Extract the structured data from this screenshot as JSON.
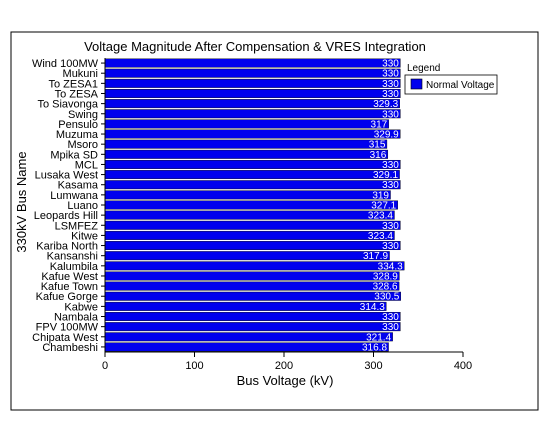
{
  "chart_data": {
    "type": "bar",
    "orientation": "horizontal",
    "title": "Voltage Magnitude After Compensation & VRES Integration",
    "xlabel": "Bus Voltage (kV)",
    "ylabel": "330kV Bus Name",
    "xlim": [
      0,
      400
    ],
    "xticks": [
      "0",
      "100",
      "200",
      "300",
      "400"
    ],
    "grid": false,
    "legend": {
      "title": "Legend",
      "placement": "top-right",
      "entries": [
        "Normal Voltage"
      ]
    },
    "bar_color": "#0000ee",
    "categories": [
      "Wind 100MW",
      "Mukuni",
      "To ZESA1",
      "To ZESA",
      "To Siavonga",
      "Swing",
      "Pensulo",
      "Muzuma",
      "Msoro",
      "Mpika SD",
      "MCL",
      "Lusaka West",
      "Kasama",
      "Lumwana",
      "Luano",
      "Leopards Hill",
      "LSMFEZ",
      "Kitwe",
      "Kariba North",
      "Kansanshi",
      "Kalumbila",
      "Kafue West",
      "Kafue Town",
      "Kafue Gorge",
      "Kabwe",
      "Nambala",
      "FPV 100MW",
      "Chipata West",
      "Chambeshi"
    ],
    "values": [
      330,
      330,
      330,
      330,
      329.3,
      330,
      317,
      329.9,
      315,
      316,
      330,
      329.1,
      330,
      319,
      327.1,
      323.4,
      330,
      323.4,
      330,
      317.9,
      334.3,
      328.9,
      328.6,
      330.5,
      314.3,
      330,
      330,
      321.4,
      316.8
    ],
    "value_labels": [
      "330",
      "330",
      "330",
      "330",
      "329.3",
      "330",
      "317",
      "329.9",
      "315",
      "316",
      "330",
      "329.1",
      "330",
      "319",
      "327.1",
      "323.4",
      "330",
      "323.4",
      "330",
      "317.9",
      "334.3",
      "328.9",
      "328.6",
      "330.5",
      "314.3",
      "330",
      "330",
      "321.4",
      "316.8"
    ]
  }
}
